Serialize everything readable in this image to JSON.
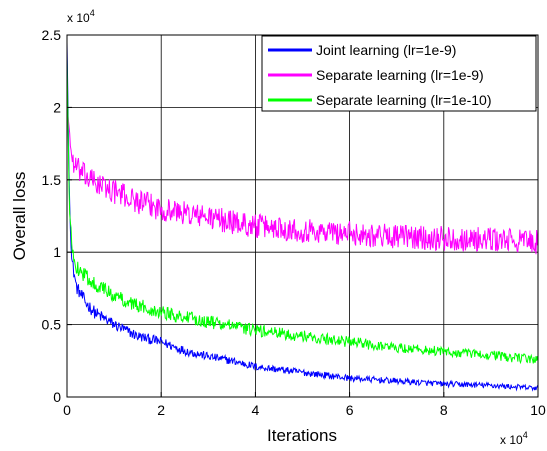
{
  "chart_data": {
    "type": "line",
    "xlabel": "Iterations",
    "ylabel": "Overall loss",
    "x_multiplier": "x 10",
    "y_multiplier": "x 10",
    "exponent": "4",
    "xlim": [
      0,
      100000
    ],
    "ylim": [
      0,
      25000
    ],
    "x_ticks": [
      0,
      20000,
      40000,
      60000,
      80000,
      100000
    ],
    "x_tick_labels": [
      "0",
      "2",
      "4",
      "6",
      "8",
      "10"
    ],
    "y_ticks": [
      0,
      5000,
      10000,
      15000,
      20000,
      25000
    ],
    "y_tick_labels": [
      "0",
      "0.5",
      "1",
      "1.5",
      "2",
      "2.5"
    ],
    "grid": true,
    "legend_position": "top-right",
    "series": [
      {
        "name": "Joint learning (lr=1e-9)",
        "color": "#0000ff",
        "noise": 450,
        "points": [
          [
            0,
            24500
          ],
          [
            500,
            14000
          ],
          [
            1000,
            9500
          ],
          [
            2000,
            7600
          ],
          [
            4000,
            6500
          ],
          [
            6000,
            5800
          ],
          [
            8000,
            5400
          ],
          [
            10000,
            5000
          ],
          [
            15000,
            4200
          ],
          [
            20000,
            3800
          ],
          [
            25000,
            3200
          ],
          [
            30000,
            2800
          ],
          [
            35000,
            2500
          ],
          [
            40000,
            2100
          ],
          [
            45000,
            1900
          ],
          [
            50000,
            1700
          ],
          [
            55000,
            1500
          ],
          [
            60000,
            1300
          ],
          [
            65000,
            1200
          ],
          [
            70000,
            1100
          ],
          [
            75000,
            1000
          ],
          [
            80000,
            900
          ],
          [
            85000,
            850
          ],
          [
            90000,
            800
          ],
          [
            95000,
            700
          ],
          [
            100000,
            600
          ]
        ]
      },
      {
        "name": "Separate learning (lr=1e-9)",
        "color": "#ff00ff",
        "noise": 850,
        "points": [
          [
            0,
            20000
          ],
          [
            500,
            18500
          ],
          [
            1000,
            16500
          ],
          [
            2000,
            15800
          ],
          [
            4000,
            15200
          ],
          [
            6000,
            14800
          ],
          [
            8000,
            14500
          ],
          [
            10000,
            14200
          ],
          [
            15000,
            13500
          ],
          [
            20000,
            13000
          ],
          [
            25000,
            12700
          ],
          [
            30000,
            12400
          ],
          [
            35000,
            12100
          ],
          [
            40000,
            11800
          ],
          [
            45000,
            11700
          ],
          [
            50000,
            11500
          ],
          [
            55000,
            11400
          ],
          [
            60000,
            11300
          ],
          [
            65000,
            11200
          ],
          [
            70000,
            11100
          ],
          [
            75000,
            11000
          ],
          [
            80000,
            10950
          ],
          [
            85000,
            10900
          ],
          [
            90000,
            10850
          ],
          [
            95000,
            10800
          ],
          [
            100000,
            10700
          ]
        ]
      },
      {
        "name": "Separate learning (lr=1e-10)",
        "color": "#00ff00",
        "noise": 500,
        "points": [
          [
            0,
            23500
          ],
          [
            500,
            13000
          ],
          [
            1000,
            10500
          ],
          [
            2000,
            9000
          ],
          [
            4000,
            8300
          ],
          [
            6000,
            7800
          ],
          [
            8000,
            7400
          ],
          [
            10000,
            7000
          ],
          [
            15000,
            6300
          ],
          [
            20000,
            5900
          ],
          [
            25000,
            5500
          ],
          [
            30000,
            5200
          ],
          [
            35000,
            4900
          ],
          [
            40000,
            4600
          ],
          [
            45000,
            4400
          ],
          [
            50000,
            4200
          ],
          [
            55000,
            4000
          ],
          [
            60000,
            3800
          ],
          [
            65000,
            3600
          ],
          [
            70000,
            3400
          ],
          [
            75000,
            3300
          ],
          [
            80000,
            3100
          ],
          [
            85000,
            3000
          ],
          [
            90000,
            2900
          ],
          [
            95000,
            2700
          ],
          [
            100000,
            2600
          ]
        ]
      }
    ]
  }
}
